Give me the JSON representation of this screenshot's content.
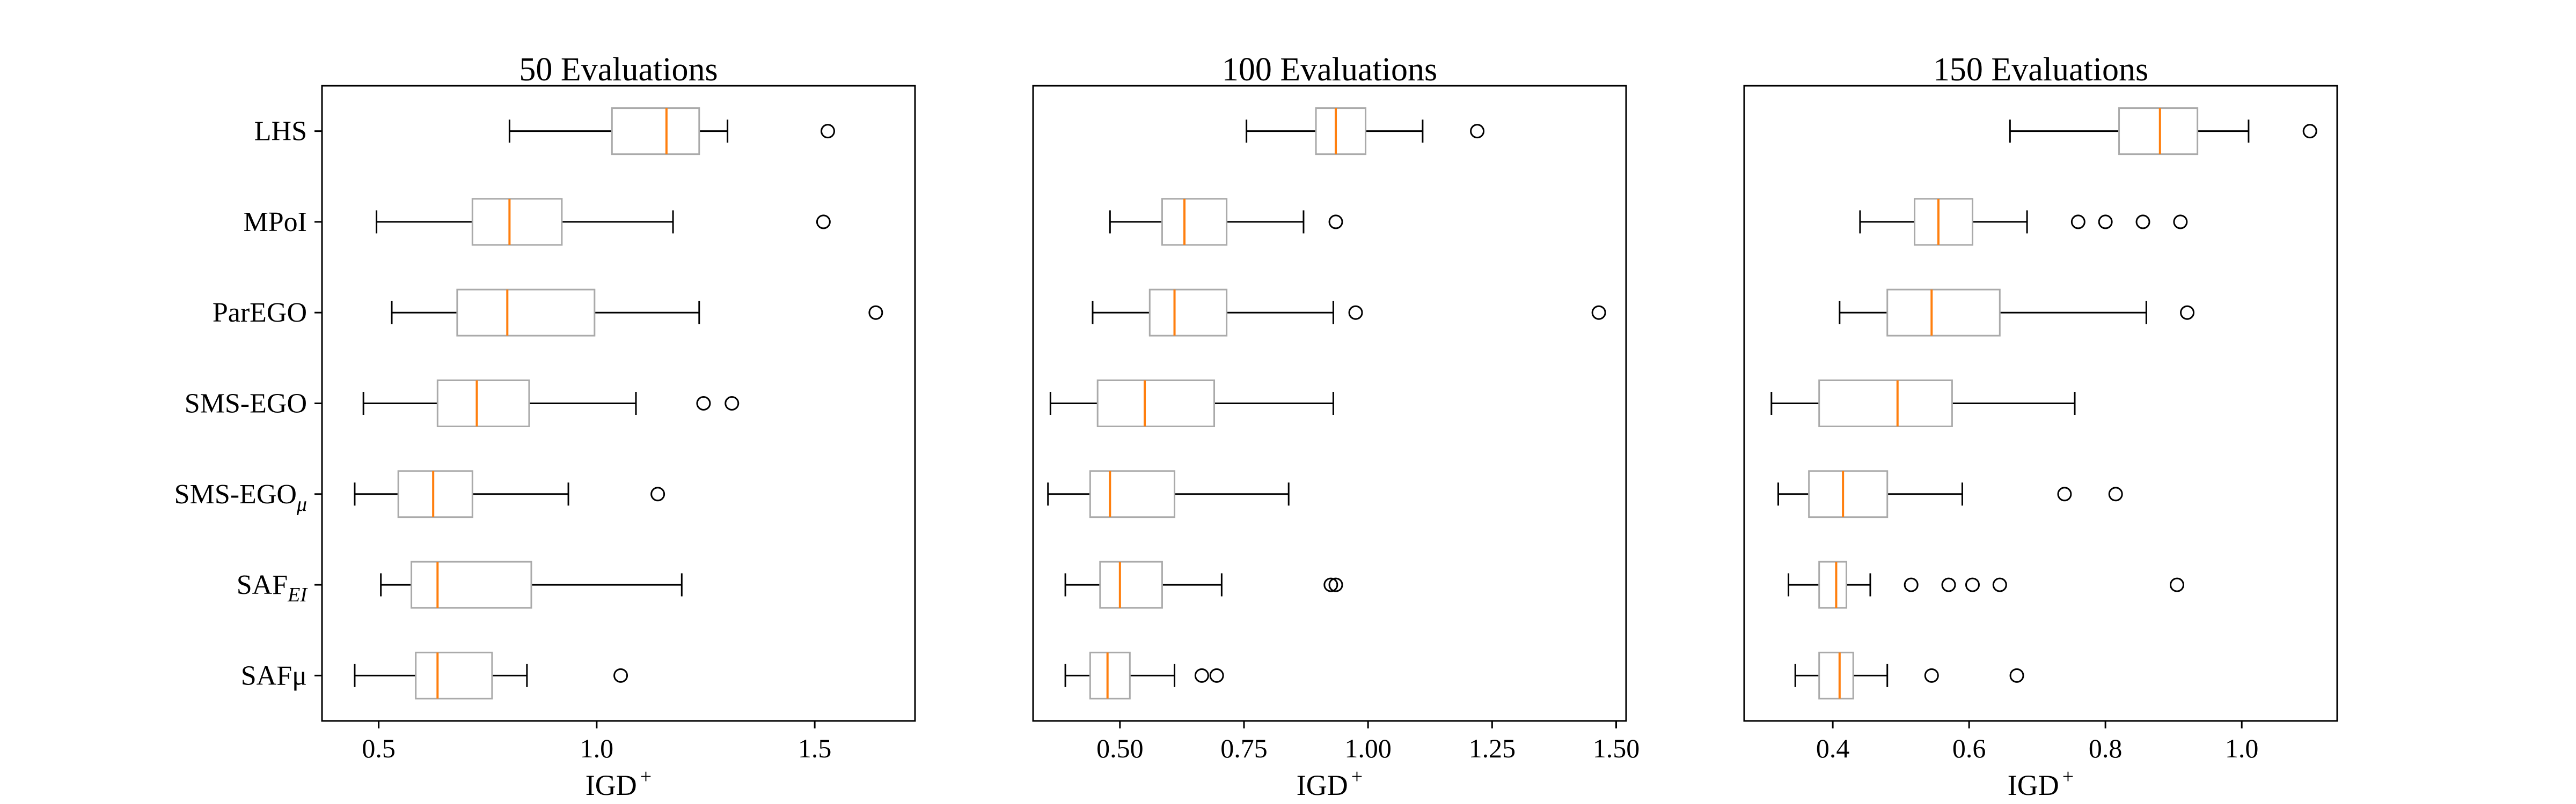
{
  "chart_data": [
    {
      "type": "boxplot",
      "title": "50 Evaluations",
      "xlabel": "IGD",
      "xlabel_sup": "+",
      "xlim": [
        0.37,
        1.73
      ],
      "xticks": [
        {
          "value": 0.5,
          "label": "0.5"
        },
        {
          "value": 1.0,
          "label": "1.0"
        },
        {
          "value": 1.5,
          "label": "1.5"
        }
      ],
      "boxes": [
        {
          "whisker_low": 0.8,
          "q1": 1.035,
          "median": 1.16,
          "q3": 1.235,
          "whisker_high": 1.3,
          "outliers": [
            1.53
          ]
        },
        {
          "whisker_low": 0.495,
          "q1": 0.715,
          "median": 0.8,
          "q3": 0.92,
          "whisker_high": 1.175,
          "outliers": [
            1.52
          ]
        },
        {
          "whisker_low": 0.53,
          "q1": 0.68,
          "median": 0.795,
          "q3": 0.995,
          "whisker_high": 1.235,
          "outliers": [
            1.64
          ]
        },
        {
          "whisker_low": 0.465,
          "q1": 0.635,
          "median": 0.725,
          "q3": 0.845,
          "whisker_high": 1.09,
          "outliers": [
            1.245,
            1.31
          ]
        },
        {
          "whisker_low": 0.445,
          "q1": 0.545,
          "median": 0.625,
          "q3": 0.715,
          "whisker_high": 0.935,
          "outliers": [
            1.14
          ]
        },
        {
          "whisker_low": 0.505,
          "q1": 0.575,
          "median": 0.635,
          "q3": 0.85,
          "whisker_high": 1.195,
          "outliers": []
        },
        {
          "whisker_low": 0.445,
          "q1": 0.585,
          "median": 0.635,
          "q3": 0.76,
          "whisker_high": 0.84,
          "outliers": [
            1.055
          ]
        }
      ]
    },
    {
      "type": "boxplot",
      "title": "100 Evaluations",
      "xlabel": "IGD",
      "xlabel_sup": "+",
      "xlim": [
        0.325,
        1.52
      ],
      "xticks": [
        {
          "value": 0.5,
          "label": "0.50"
        },
        {
          "value": 0.75,
          "label": "0.75"
        },
        {
          "value": 1.0,
          "label": "1.00"
        },
        {
          "value": 1.25,
          "label": "1.25"
        },
        {
          "value": 1.5,
          "label": "1.50"
        }
      ],
      "boxes": [
        {
          "whisker_low": 0.755,
          "q1": 0.895,
          "median": 0.935,
          "q3": 0.995,
          "whisker_high": 1.11,
          "outliers": [
            1.22
          ]
        },
        {
          "whisker_low": 0.48,
          "q1": 0.585,
          "median": 0.63,
          "q3": 0.715,
          "whisker_high": 0.87,
          "outliers": [
            0.935
          ]
        },
        {
          "whisker_low": 0.445,
          "q1": 0.56,
          "median": 0.61,
          "q3": 0.715,
          "whisker_high": 0.93,
          "outliers": [
            0.975,
            1.465
          ]
        },
        {
          "whisker_low": 0.36,
          "q1": 0.455,
          "median": 0.55,
          "q3": 0.69,
          "whisker_high": 0.93,
          "outliers": []
        },
        {
          "whisker_low": 0.355,
          "q1": 0.44,
          "median": 0.48,
          "q3": 0.61,
          "whisker_high": 0.84,
          "outliers": []
        },
        {
          "whisker_low": 0.39,
          "q1": 0.46,
          "median": 0.5,
          "q3": 0.585,
          "whisker_high": 0.705,
          "outliers": [
            0.925,
            0.935
          ]
        },
        {
          "whisker_low": 0.39,
          "q1": 0.44,
          "median": 0.475,
          "q3": 0.52,
          "whisker_high": 0.61,
          "outliers": [
            0.665,
            0.695
          ]
        }
      ]
    },
    {
      "type": "boxplot",
      "title": "150 Evaluations",
      "xlabel": "IGD",
      "xlabel_sup": "+",
      "xlim": [
        0.27,
        1.14
      ],
      "xticks": [
        {
          "value": 0.4,
          "label": "0.4"
        },
        {
          "value": 0.6,
          "label": "0.6"
        },
        {
          "value": 0.8,
          "label": "0.8"
        },
        {
          "value": 1.0,
          "label": "1.0"
        }
      ],
      "boxes": [
        {
          "whisker_low": 0.66,
          "q1": 0.82,
          "median": 0.88,
          "q3": 0.935,
          "whisker_high": 1.01,
          "outliers": [
            1.1
          ]
        },
        {
          "whisker_low": 0.44,
          "q1": 0.52,
          "median": 0.555,
          "q3": 0.605,
          "whisker_high": 0.685,
          "outliers": [
            0.76,
            0.8,
            0.855,
            0.91
          ]
        },
        {
          "whisker_low": 0.41,
          "q1": 0.48,
          "median": 0.545,
          "q3": 0.645,
          "whisker_high": 0.86,
          "outliers": [
            0.92
          ]
        },
        {
          "whisker_low": 0.31,
          "q1": 0.38,
          "median": 0.495,
          "q3": 0.575,
          "whisker_high": 0.755,
          "outliers": []
        },
        {
          "whisker_low": 0.32,
          "q1": 0.365,
          "median": 0.415,
          "q3": 0.48,
          "whisker_high": 0.59,
          "outliers": [
            0.74,
            0.815
          ]
        },
        {
          "whisker_low": 0.335,
          "q1": 0.38,
          "median": 0.405,
          "q3": 0.42,
          "whisker_high": 0.455,
          "outliers": [
            0.515,
            0.57,
            0.605,
            0.645,
            0.905
          ]
        },
        {
          "whisker_low": 0.345,
          "q1": 0.38,
          "median": 0.41,
          "q3": 0.43,
          "whisker_high": 0.48,
          "outliers": [
            0.545,
            0.67
          ]
        }
      ]
    }
  ],
  "row_labels": [
    {
      "main": "LHS",
      "sub": ""
    },
    {
      "main": "MPoI",
      "sub": ""
    },
    {
      "main": "ParEGO",
      "sub": ""
    },
    {
      "main": "SMS-EGO",
      "sub": ""
    },
    {
      "main": "SMS-EGO",
      "sub": "μ"
    },
    {
      "main": "SAF",
      "sub": "EI"
    },
    {
      "main": "SAFμ",
      "sub": ""
    }
  ],
  "colors": {
    "box": "#aaaaaa",
    "median": "#ff7f0e",
    "whisker": "#000000",
    "flier": "#000000",
    "frame": "#000000"
  }
}
